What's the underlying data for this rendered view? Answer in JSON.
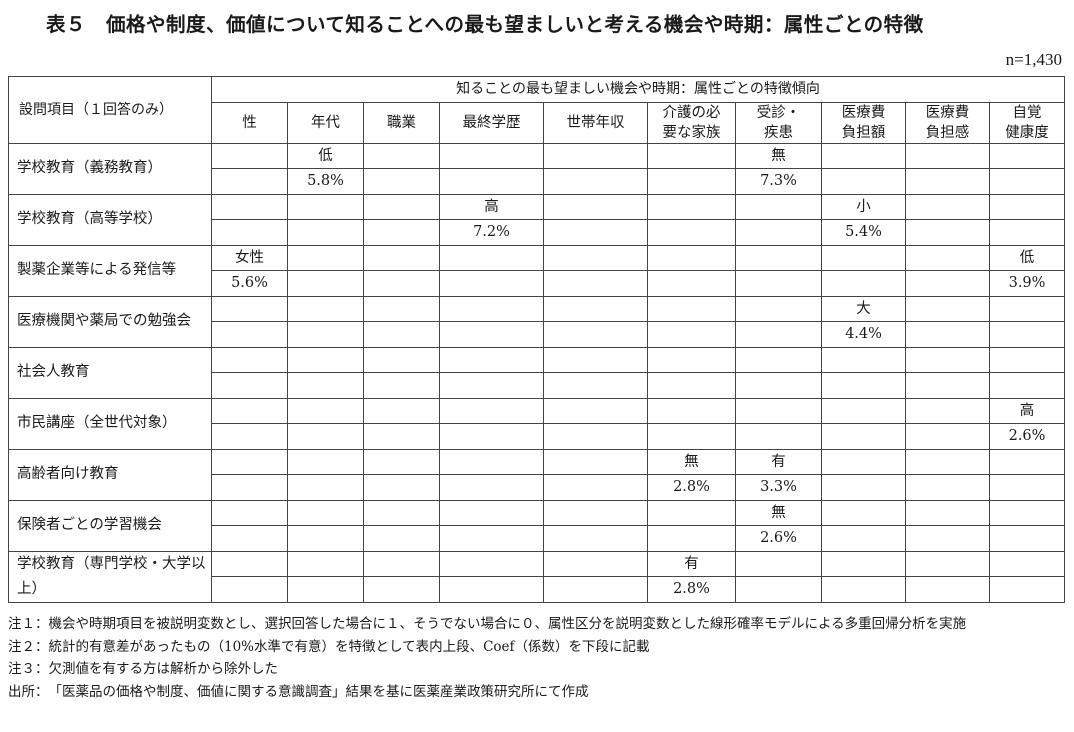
{
  "title": "表５　価格や制度、価値について知ることへの最も望ましいと考える機会や時期：属性ごとの特徴",
  "n_label": "n=1,430",
  "table": {
    "row_header": "設問項目（１回答のみ）",
    "caption": "知ることの最も望ましい機会や時期：属性ごとの特徴傾向",
    "columns": [
      [
        "性"
      ],
      [
        "年代"
      ],
      [
        "職業"
      ],
      [
        "最終学歴"
      ],
      [
        "世帯年収"
      ],
      [
        "介護の必",
        "要な家族"
      ],
      [
        "受診・",
        "疾患"
      ],
      [
        "医療費",
        "負担額"
      ],
      [
        "医療費",
        "負担感"
      ],
      [
        "自覚",
        "健康度"
      ]
    ],
    "rows": [
      {
        "item": "学校教育（義務教育）",
        "top": [
          "",
          "低",
          "",
          "",
          "",
          "",
          "無",
          "",
          "",
          ""
        ],
        "bottom": [
          "",
          "5.8%",
          "",
          "",
          "",
          "",
          "7.3%",
          "",
          "",
          ""
        ]
      },
      {
        "item": "学校教育（高等学校）",
        "top": [
          "",
          "",
          "",
          "高",
          "",
          "",
          "",
          "小",
          "",
          ""
        ],
        "bottom": [
          "",
          "",
          "",
          "7.2%",
          "",
          "",
          "",
          "5.4%",
          "",
          ""
        ]
      },
      {
        "item": "製薬企業等による発信等",
        "top": [
          "女性",
          "",
          "",
          "",
          "",
          "",
          "",
          "",
          "",
          "低"
        ],
        "bottom": [
          "5.6%",
          "",
          "",
          "",
          "",
          "",
          "",
          "",
          "",
          "3.9%"
        ]
      },
      {
        "item": "医療機関や薬局での勉強会",
        "top": [
          "",
          "",
          "",
          "",
          "",
          "",
          "",
          "大",
          "",
          ""
        ],
        "bottom": [
          "",
          "",
          "",
          "",
          "",
          "",
          "",
          "4.4%",
          "",
          ""
        ]
      },
      {
        "item": "社会人教育",
        "top": [
          "",
          "",
          "",
          "",
          "",
          "",
          "",
          "",
          "",
          ""
        ],
        "bottom": [
          "",
          "",
          "",
          "",
          "",
          "",
          "",
          "",
          "",
          ""
        ]
      },
      {
        "item": "市民講座（全世代対象）",
        "top": [
          "",
          "",
          "",
          "",
          "",
          "",
          "",
          "",
          "",
          "高"
        ],
        "bottom": [
          "",
          "",
          "",
          "",
          "",
          "",
          "",
          "",
          "",
          "2.6%"
        ]
      },
      {
        "item": "高齢者向け教育",
        "top": [
          "",
          "",
          "",
          "",
          "",
          "無",
          "有",
          "",
          "",
          ""
        ],
        "bottom": [
          "",
          "",
          "",
          "",
          "",
          "2.8%",
          "3.3%",
          "",
          "",
          ""
        ]
      },
      {
        "item": "保険者ごとの学習機会",
        "top": [
          "",
          "",
          "",
          "",
          "",
          "",
          "無",
          "",
          "",
          ""
        ],
        "bottom": [
          "",
          "",
          "",
          "",
          "",
          "",
          "2.6%",
          "",
          "",
          ""
        ]
      },
      {
        "item": "学校教育（専門学校・大学以上）",
        "top": [
          "",
          "",
          "",
          "",
          "",
          "有",
          "",
          "",
          "",
          ""
        ],
        "bottom": [
          "",
          "",
          "",
          "",
          "",
          "2.8%",
          "",
          "",
          "",
          ""
        ]
      }
    ]
  },
  "notes": [
    {
      "label": "注１：",
      "text": "機会や時期項目を被説明変数とし、選択回答した場合に１、そうでない場合に０、属性区分を説明変数とした線形確率モデルによる多重回帰分析を実施"
    },
    {
      "label": "注２：",
      "text": "統計的有意差があったもの（10%水準で有意）を特徴として表内上段、Coef（係数）を下段に記載"
    },
    {
      "label": "注３：",
      "text": "欠測値を有する方は解析から除外した"
    },
    {
      "label": "出所：",
      "text": "「医薬品の価格や制度、価値に関する意識調査」結果を基に医薬産業政策研究所にて作成"
    }
  ]
}
